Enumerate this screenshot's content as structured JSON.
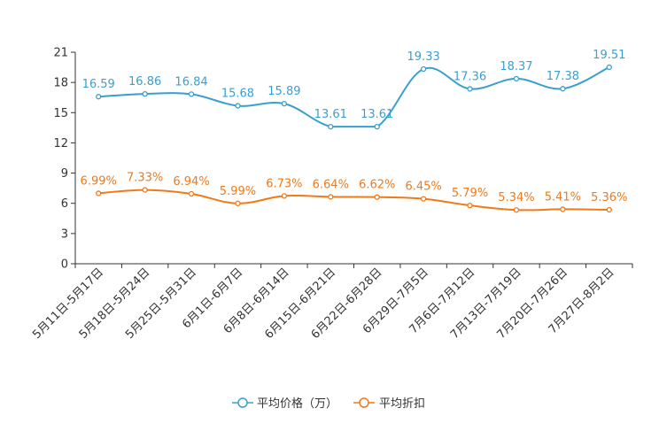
{
  "chart_data": {
    "type": "line",
    "title": "",
    "xlabel": "",
    "ylabel": "",
    "ylim": [
      0,
      21
    ],
    "yticks": [
      0,
      3,
      6,
      9,
      12,
      15,
      18,
      21
    ],
    "grid": false,
    "legend_position": "bottom-center",
    "categories": [
      "5月11日-5月17日",
      "5月18日-5月24日",
      "5月25日-5月31日",
      "6月1日-6月7日",
      "6月8日-6月14日",
      "6月15日-6月21日",
      "6月22日-6月28日",
      "6月29日-7月5日",
      "7月6日-7月12日",
      "7月13日-7月19日",
      "7月20日-7月26日",
      "7月27日-8月2日"
    ],
    "series": [
      {
        "name": "平均价格（万）",
        "color": "#3a9fd0",
        "values": [
          16.59,
          16.86,
          16.84,
          15.68,
          15.89,
          13.61,
          13.61,
          19.33,
          17.36,
          18.37,
          17.38,
          19.51
        ],
        "labels": [
          "16.59",
          "16.86",
          "16.84",
          "15.68",
          "15.89",
          "13.61",
          "13.61",
          "19.33",
          "17.36",
          "18.37",
          "17.38",
          "19.51"
        ]
      },
      {
        "name": "平均折扣",
        "color": "#f07a1a",
        "values": [
          6.99,
          7.33,
          6.94,
          5.99,
          6.73,
          6.64,
          6.62,
          6.45,
          5.79,
          5.34,
          5.41,
          5.36
        ],
        "labels": [
          "6.99%",
          "7.33%",
          "6.94%",
          "5.99%",
          "6.73%",
          "6.64%",
          "6.62%",
          "6.45%",
          "5.79%",
          "5.34%",
          "5.41%",
          "5.36%"
        ]
      }
    ]
  }
}
